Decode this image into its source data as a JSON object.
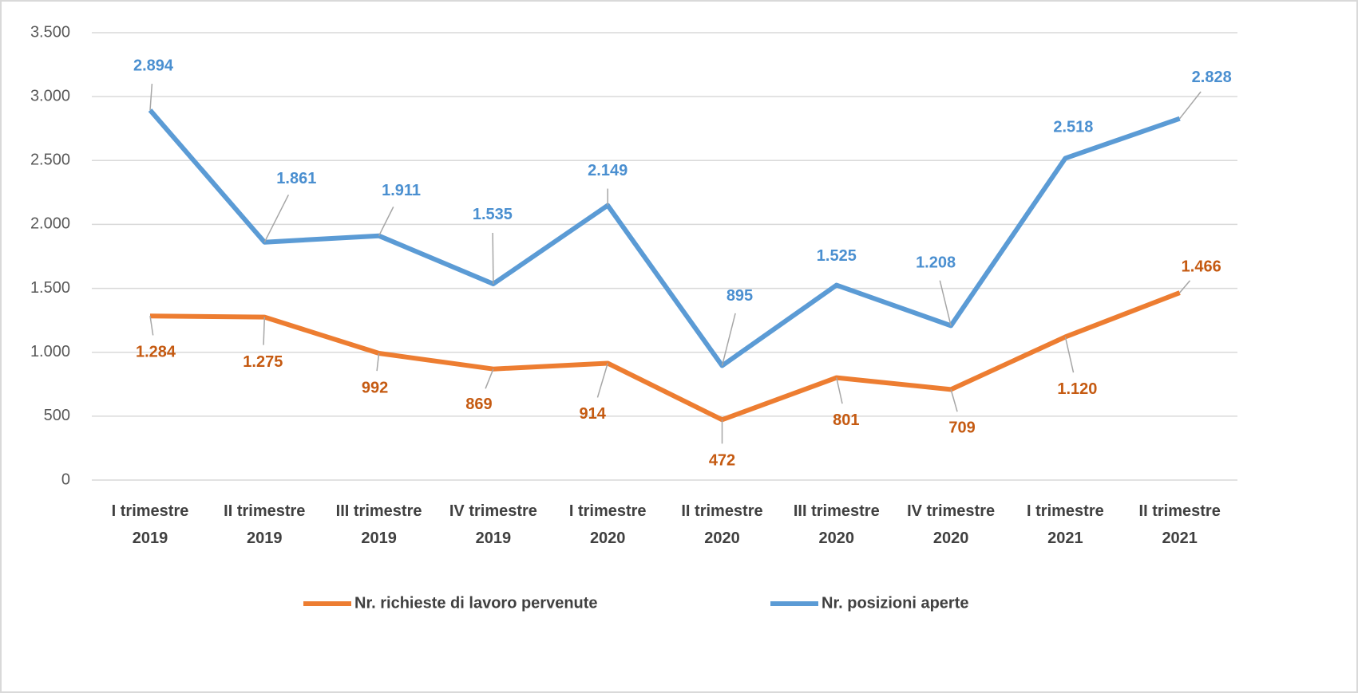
{
  "chart_data": {
    "type": "line",
    "categories": [
      "I trimestre\n2019",
      "II trimestre\n2019",
      "III trimestre\n2019",
      "IV trimestre\n2019",
      "I trimestre\n2020",
      "II trimestre\n2020",
      "III trimestre\n2020",
      "IV trimestre\n2020",
      "I trimestre\n2021",
      "II trimestre\n2021"
    ],
    "series": [
      {
        "name": "Nr. richieste di lavoro pervenute",
        "color": "#ed7d31",
        "label_color": "#c55a11",
        "values": [
          1284,
          1275,
          992,
          869,
          914,
          472,
          801,
          709,
          1120,
          1466
        ],
        "value_labels": [
          "1.284",
          "1.275",
          "992",
          "869",
          "914",
          "472",
          "801",
          "709",
          "1.120",
          "1.466"
        ]
      },
      {
        "name": "Nr. posizioni aperte",
        "color": "#5b9bd5",
        "label_color": "#4a8fd0",
        "values": [
          2894,
          1861,
          1911,
          1535,
          2149,
          895,
          1525,
          1208,
          2518,
          2828
        ],
        "value_labels": [
          "2.894",
          "1.861",
          "1.911",
          "1.535",
          "2.149",
          "895",
          "1.525",
          "1.208",
          "2.518",
          "2.828"
        ]
      }
    ],
    "ylim": [
      0,
      3500
    ],
    "yticks": [
      0,
      500,
      {
        "value": 1000,
        "label": "1.000"
      },
      {
        "value": 1500,
        "label": "1.500"
      },
      {
        "value": 2000,
        "label": "2.000"
      },
      {
        "value": 2500,
        "label": "2.500"
      },
      {
        "value": 3000,
        "label": "3.000"
      },
      {
        "value": 3500,
        "label": "3.500"
      }
    ],
    "grid": true,
    "legend": "bottom"
  }
}
